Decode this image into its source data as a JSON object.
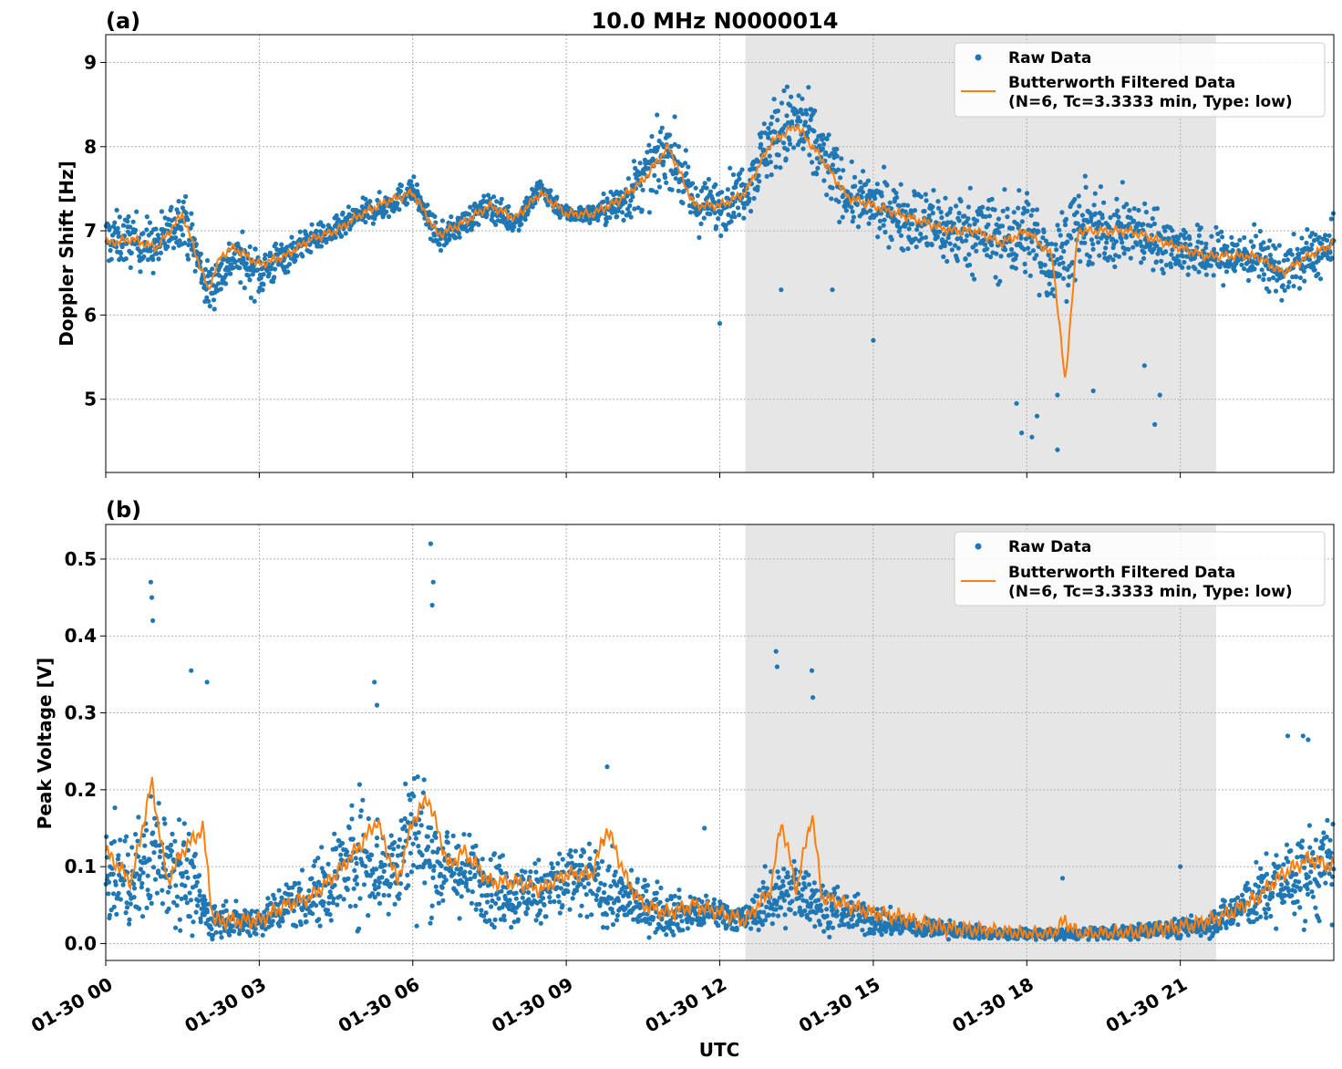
{
  "figure": {
    "title": "10.0 MHz N0000014",
    "xlabel": "UTC",
    "x_tick_labels": [
      "01-30 00",
      "01-30 03",
      "01-30 06",
      "01-30 09",
      "01-30 12",
      "01-30 15",
      "01-30 18",
      "01-30 21"
    ],
    "legend": {
      "raw": "Raw Data",
      "filtered_line1": "Butterworth Filtered Data",
      "filtered_line2": "(N=6, Tc=3.3333 min, Type: low)"
    },
    "colors": {
      "raw": "#1f77b4",
      "filtered": "#ff7f0e",
      "shade": "#e6e6e6",
      "grid": "#b0b0b0"
    },
    "shaded_interval_utc_hours": [
      12.5,
      21.7
    ]
  },
  "chart_data": [
    {
      "type": "scatter",
      "panel_label": "(a)",
      "title": "10.0 MHz N0000014",
      "ylabel": "Doppler Shift [Hz]",
      "xlabel": "",
      "x_unit": "UTC hours on 01-30",
      "xlim": [
        0,
        24
      ],
      "ylim": [
        4.13,
        9.33
      ],
      "yticks": [
        5,
        6,
        7,
        8,
        9
      ],
      "y_tick_labels": [
        "5",
        "6",
        "7",
        "8",
        "9"
      ],
      "grid": true,
      "legend_position": "top-right",
      "series": [
        {
          "name": "Raw Data",
          "style": "points",
          "x": [
            0,
            0.5,
            1,
            1.5,
            2,
            2.5,
            3,
            3.5,
            4,
            4.5,
            5,
            5.5,
            6,
            6.5,
            7,
            7.5,
            8,
            8.5,
            9,
            9.5,
            10,
            10.5,
            11,
            11.5,
            12,
            12.5,
            13,
            13.5,
            14,
            14.5,
            15,
            15.5,
            16,
            16.5,
            17,
            17.5,
            18,
            18.5,
            19,
            19.5,
            20,
            20.5,
            21,
            21.5,
            22,
            22.5,
            23,
            23.5,
            24
          ],
          "y": [
            6.9,
            6.9,
            6.8,
            7.2,
            6.3,
            6.7,
            6.5,
            6.7,
            6.9,
            7.0,
            7.2,
            7.3,
            7.5,
            6.9,
            7.1,
            7.3,
            7.1,
            7.5,
            7.2,
            7.2,
            7.3,
            7.6,
            8.0,
            7.3,
            7.3,
            7.5,
            8.1,
            8.3,
            7.9,
            7.4,
            7.3,
            7.2,
            7.1,
            7.0,
            7.0,
            6.9,
            7.0,
            6.6,
            7.0,
            7.0,
            7.0,
            6.9,
            6.8,
            6.7,
            6.7,
            6.7,
            6.5,
            6.7,
            6.8
          ],
          "spread": [
            0.3,
            0.3,
            0.3,
            0.3,
            0.3,
            0.25,
            0.3,
            0.2,
            0.15,
            0.15,
            0.15,
            0.15,
            0.15,
            0.15,
            0.15,
            0.15,
            0.15,
            0.15,
            0.1,
            0.1,
            0.25,
            0.35,
            0.4,
            0.3,
            0.3,
            0.3,
            0.45,
            0.5,
            0.45,
            0.3,
            0.35,
            0.35,
            0.4,
            0.45,
            0.45,
            0.5,
            0.5,
            0.5,
            0.5,
            0.4,
            0.4,
            0.35,
            0.3,
            0.3,
            0.3,
            0.3,
            0.3,
            0.3,
            0.3
          ]
        },
        {
          "name": "Butterworth Filtered Data (N=6, Tc=3.3333 min, Type: low)",
          "style": "line",
          "x": [
            0,
            0.5,
            1,
            1.5,
            2,
            2.25,
            2.5,
            3,
            3.5,
            4,
            4.5,
            5,
            5.5,
            6,
            6.5,
            7,
            7.5,
            8,
            8.5,
            9,
            9.5,
            10,
            10.5,
            11,
            11.5,
            12,
            12.5,
            13,
            13.5,
            14,
            14.5,
            15,
            15.5,
            16,
            16.5,
            17,
            17.5,
            18,
            18.5,
            18.75,
            19,
            19.5,
            20,
            20.5,
            21,
            21.5,
            22,
            22.5,
            23,
            23.5,
            24
          ],
          "y": [
            6.85,
            6.9,
            6.8,
            7.2,
            6.3,
            6.7,
            6.8,
            6.6,
            6.7,
            6.9,
            7.0,
            7.2,
            7.35,
            7.45,
            6.95,
            7.1,
            7.3,
            7.15,
            7.45,
            7.2,
            7.2,
            7.35,
            7.6,
            8.0,
            7.3,
            7.3,
            7.45,
            8.05,
            8.25,
            7.85,
            7.4,
            7.3,
            7.2,
            7.1,
            7.0,
            7.0,
            6.85,
            7.0,
            6.7,
            5.2,
            7.0,
            7.0,
            7.0,
            6.9,
            6.8,
            6.7,
            6.7,
            6.7,
            6.5,
            6.7,
            6.85
          ]
        }
      ],
      "raw_outliers": {
        "x": [
          17.8,
          17.9,
          18.1,
          18.2,
          18.6,
          18.6,
          19.3,
          20.5,
          20.6,
          20.3,
          14.2,
          13.2,
          15.0,
          12.0
        ],
        "y": [
          4.95,
          4.6,
          4.55,
          4.8,
          4.4,
          5.05,
          5.1,
          4.7,
          5.05,
          5.4,
          6.3,
          6.3,
          5.7,
          5.9
        ]
      }
    },
    {
      "type": "scatter",
      "panel_label": "(b)",
      "title": "",
      "ylabel": "Peak Voltage [V]",
      "xlabel": "UTC",
      "x_unit": "UTC hours on 01-30",
      "xlim": [
        0,
        24
      ],
      "ylim": [
        -0.022,
        0.545
      ],
      "yticks": [
        0.0,
        0.1,
        0.2,
        0.3,
        0.4,
        0.5
      ],
      "y_tick_labels": [
        "0.0",
        "0.1",
        "0.2",
        "0.3",
        "0.4",
        "0.5"
      ],
      "grid": true,
      "legend_position": "top-right",
      "series": [
        {
          "name": "Raw Data",
          "style": "points",
          "x": [
            0,
            0.5,
            1,
            1.5,
            2,
            2.5,
            3,
            3.5,
            4,
            4.5,
            5,
            5.5,
            6,
            6.5,
            7,
            7.5,
            8,
            8.5,
            9,
            9.5,
            10,
            10.5,
            11,
            11.5,
            12,
            12.5,
            13,
            13.5,
            14,
            14.5,
            15,
            15.5,
            16,
            16.5,
            17,
            17.5,
            18,
            18.5,
            19,
            19.5,
            20,
            20.5,
            21,
            21.5,
            22,
            22.5,
            23,
            23.5,
            24
          ],
          "y": [
            0.09,
            0.08,
            0.12,
            0.1,
            0.03,
            0.03,
            0.03,
            0.05,
            0.06,
            0.09,
            0.12,
            0.09,
            0.15,
            0.1,
            0.09,
            0.08,
            0.06,
            0.07,
            0.08,
            0.08,
            0.06,
            0.05,
            0.04,
            0.04,
            0.04,
            0.03,
            0.06,
            0.07,
            0.05,
            0.04,
            0.03,
            0.025,
            0.02,
            0.018,
            0.015,
            0.012,
            0.012,
            0.012,
            0.012,
            0.013,
            0.015,
            0.018,
            0.02,
            0.025,
            0.04,
            0.06,
            0.08,
            0.09,
            0.1
          ],
          "spread": [
            0.06,
            0.06,
            0.08,
            0.07,
            0.03,
            0.02,
            0.02,
            0.03,
            0.04,
            0.06,
            0.08,
            0.06,
            0.09,
            0.06,
            0.05,
            0.05,
            0.04,
            0.04,
            0.05,
            0.05,
            0.04,
            0.03,
            0.03,
            0.02,
            0.02,
            0.015,
            0.04,
            0.04,
            0.03,
            0.025,
            0.02,
            0.015,
            0.012,
            0.01,
            0.008,
            0.007,
            0.007,
            0.007,
            0.007,
            0.008,
            0.009,
            0.01,
            0.012,
            0.015,
            0.025,
            0.04,
            0.05,
            0.06,
            0.06
          ]
        },
        {
          "name": "Butterworth Filtered Data (N=6, Tc=3.3333 min, Type: low)",
          "style": "line",
          "x": [
            0,
            0.5,
            0.9,
            1.2,
            1.5,
            1.9,
            2.1,
            2.5,
            3,
            3.5,
            4,
            4.5,
            5,
            5.3,
            5.7,
            6,
            6.3,
            6.7,
            7,
            7.5,
            8,
            8.5,
            9,
            9.5,
            9.8,
            10.2,
            10.5,
            11,
            11.5,
            12,
            12.5,
            13,
            13.2,
            13.5,
            13.8,
            14,
            14.5,
            15,
            15.5,
            16,
            16.5,
            17,
            17.5,
            18,
            18.5,
            18.75,
            19,
            19.5,
            20,
            20.5,
            21,
            21.5,
            22,
            22.5,
            23,
            23.5,
            24
          ],
          "y": [
            0.12,
            0.08,
            0.21,
            0.08,
            0.12,
            0.15,
            0.03,
            0.03,
            0.03,
            0.05,
            0.06,
            0.09,
            0.13,
            0.16,
            0.08,
            0.16,
            0.19,
            0.1,
            0.12,
            0.08,
            0.08,
            0.07,
            0.09,
            0.09,
            0.15,
            0.08,
            0.05,
            0.04,
            0.05,
            0.04,
            0.03,
            0.07,
            0.16,
            0.07,
            0.17,
            0.06,
            0.05,
            0.04,
            0.035,
            0.025,
            0.02,
            0.018,
            0.015,
            0.012,
            0.012,
            0.03,
            0.012,
            0.013,
            0.014,
            0.018,
            0.022,
            0.028,
            0.04,
            0.06,
            0.09,
            0.11,
            0.1
          ]
        }
      ],
      "raw_outliers": {
        "x": [
          0.88,
          0.9,
          0.92,
          1.67,
          1.98,
          5.25,
          5.3,
          6.35,
          6.4,
          6.38,
          13.1,
          13.12,
          13.8,
          13.82,
          9.8,
          11.7,
          18.7,
          21.0,
          23.4,
          23.1,
          23.5
        ],
        "y": [
          0.47,
          0.45,
          0.42,
          0.355,
          0.34,
          0.34,
          0.31,
          0.52,
          0.47,
          0.44,
          0.38,
          0.36,
          0.355,
          0.32,
          0.23,
          0.15,
          0.085,
          0.1,
          0.27,
          0.27,
          0.265
        ]
      }
    }
  ]
}
